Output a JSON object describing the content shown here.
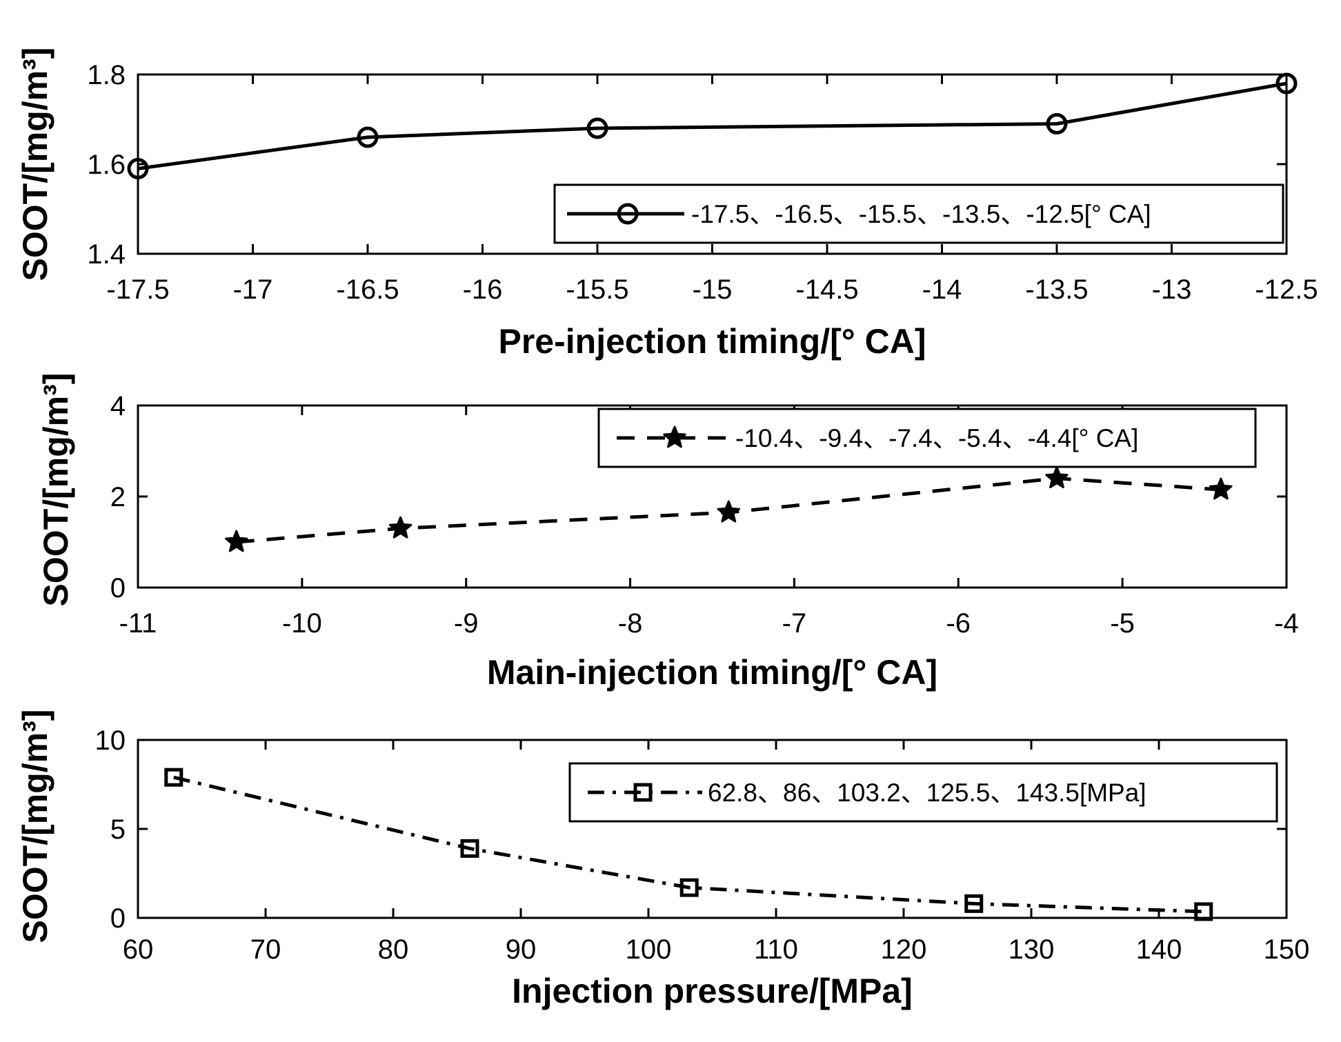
{
  "colors": {
    "line": "#000000",
    "background": "#ffffff"
  },
  "chart_data": [
    {
      "type": "line",
      "marker": "circle",
      "line_style": "solid",
      "legend_location": "bottom-right",
      "x": [
        -17.5,
        -16.5,
        -15.5,
        -13.5,
        -12.5
      ],
      "series": [
        {
          "name": "-17.5、-16.5、-15.5、-13.5、-12.5[° CA]",
          "values": [
            1.59,
            1.66,
            1.68,
            1.69,
            1.78
          ]
        }
      ],
      "xlabel": "Pre-injection timing/[° CA]",
      "ylabel": "SOOT/[mg/m³]",
      "xlim": [
        -17.5,
        -12.5
      ],
      "ylim": [
        1.4,
        1.8
      ],
      "xticks": [
        -17.5,
        -17,
        -16.5,
        -16,
        -15.5,
        -15,
        -14.5,
        -14,
        -13.5,
        -13,
        -12.5
      ],
      "xtick_labels": [
        "-17.5",
        "-17",
        "-16.5",
        "-16",
        "-15.5",
        "-15",
        "-14.5",
        "-14",
        "-13.5",
        "-13",
        "-12.5"
      ],
      "yticks": [
        1.4,
        1.6,
        1.8
      ],
      "ytick_labels": [
        "1.4",
        "1.6",
        "1.8"
      ],
      "grid": false
    },
    {
      "type": "line",
      "marker": "star",
      "line_style": "dashed",
      "legend_location": "top-right",
      "x": [
        -10.4,
        -9.4,
        -7.4,
        -5.4,
        -4.4
      ],
      "series": [
        {
          "name": "-10.4、-9.4、-7.4、-5.4、-4.4[° CA]",
          "values": [
            1.0,
            1.3,
            1.65,
            2.4,
            2.15
          ]
        }
      ],
      "xlabel": "Main-injection timing/[° CA]",
      "ylabel": "SOOT/[mg/m³]",
      "xlim": [
        -11,
        -4
      ],
      "ylim": [
        0,
        4
      ],
      "xticks": [
        -11,
        -10,
        -9,
        -8,
        -7,
        -6,
        -5,
        -4
      ],
      "xtick_labels": [
        "-11",
        "-10",
        "-9",
        "-8",
        "-7",
        "-6",
        "-5",
        "-4"
      ],
      "yticks": [
        0,
        2,
        4
      ],
      "ytick_labels": [
        "0",
        "2",
        "4"
      ],
      "grid": false
    },
    {
      "type": "line",
      "marker": "square",
      "line_style": "dash-dot",
      "legend_location": "top-right",
      "x": [
        62.8,
        86,
        103.2,
        125.5,
        143.5
      ],
      "series": [
        {
          "name": "62.8、86、103.2、125.5、143.5[MPa]",
          "values": [
            7.9,
            3.9,
            1.7,
            0.8,
            0.35
          ]
        }
      ],
      "xlabel": "Injection pressure/[MPa]",
      "ylabel": "SOOT/[mg/m³]",
      "xlim": [
        60,
        150
      ],
      "ylim": [
        0,
        10
      ],
      "xticks": [
        60,
        70,
        80,
        90,
        100,
        110,
        120,
        130,
        140,
        150
      ],
      "xtick_labels": [
        "60",
        "70",
        "80",
        "90",
        "100",
        "110",
        "120",
        "130",
        "140",
        "150"
      ],
      "yticks": [
        0,
        5,
        10
      ],
      "ytick_labels": [
        "0",
        "5",
        "10"
      ],
      "grid": false
    }
  ]
}
